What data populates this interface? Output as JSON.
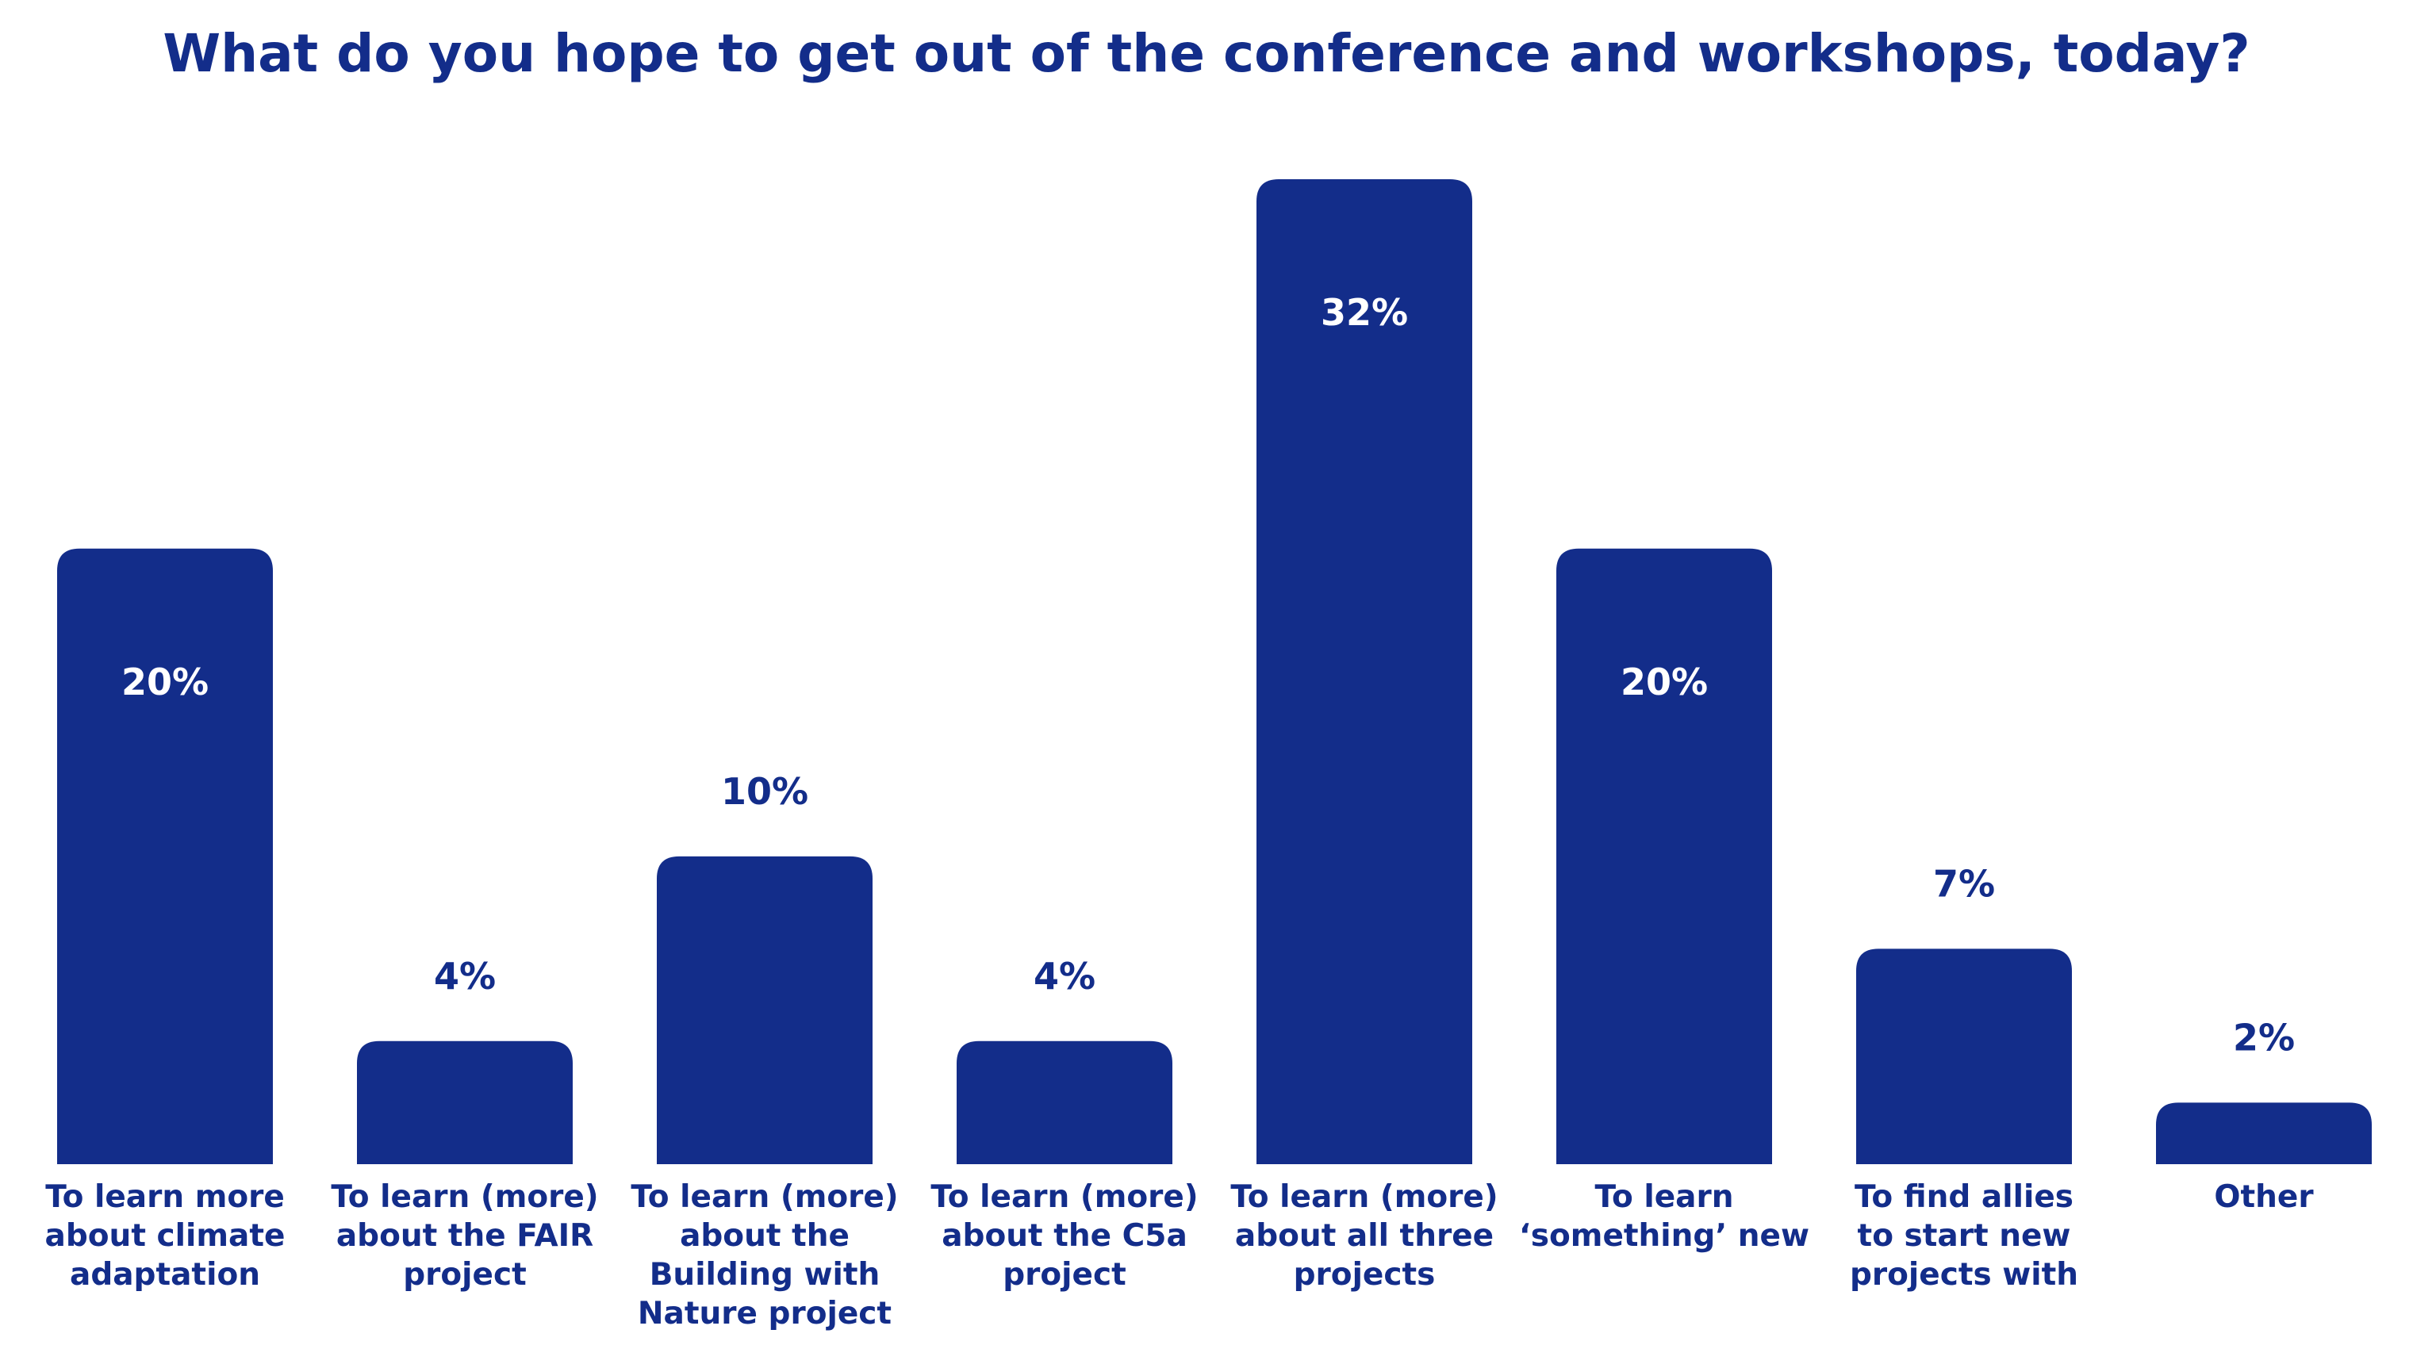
{
  "chart_data": {
    "type": "bar",
    "title": "What do you hope to get out of the conference and workshops, today?",
    "xlabel": "",
    "ylabel": "",
    "ylim": [
      0,
      32
    ],
    "grid": false,
    "categories": [
      [
        "To learn more",
        "about climate",
        "adaptation"
      ],
      [
        "To learn (more)",
        "about the FAIR",
        "project"
      ],
      [
        "To learn (more)",
        "about the",
        "Building with",
        "Nature project"
      ],
      [
        "To learn (more)",
        "about the C5a",
        "project"
      ],
      [
        "To learn (more)",
        "about all three",
        "projects"
      ],
      [
        "To learn",
        "‘something’ new"
      ],
      [
        "To find allies",
        "to start new",
        "projects with"
      ],
      [
        "Other"
      ]
    ],
    "values": [
      20,
      4,
      10,
      4,
      32,
      20,
      7,
      2
    ],
    "value_labels": [
      "20%",
      "4%",
      "10%",
      "4%",
      "32%",
      "20%",
      "7%",
      "2%"
    ],
    "colors": {
      "bar": "#132D8A",
      "title": "#132D8A",
      "label": "#132D8A",
      "inside_label": "#FFFFFF"
    }
  }
}
